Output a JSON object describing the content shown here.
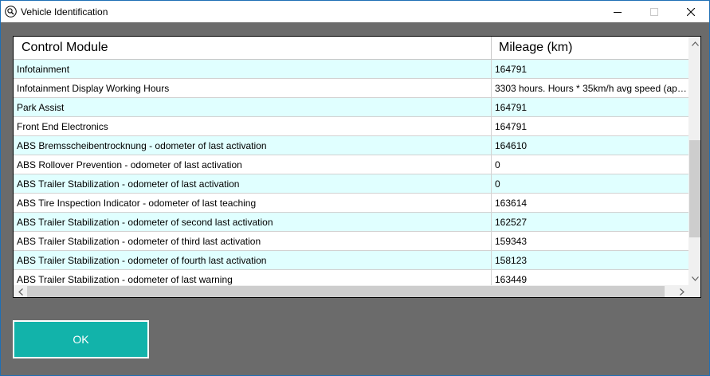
{
  "window": {
    "title": "Vehicle Identification",
    "app_icon": "magnifier-icon",
    "controls": {
      "minimize": "minimize-icon",
      "maximize": "maximize-icon",
      "close": "close-icon"
    }
  },
  "table": {
    "columns": [
      "Control Module",
      "Mileage (km)"
    ],
    "rows": [
      {
        "module": "Infotainment",
        "mileage": "164791"
      },
      {
        "module": "Infotainment Display Working Hours",
        "mileage": "3303 hours. Hours * 35km/h avg speed (app..."
      },
      {
        "module": "Park Assist",
        "mileage": "164791"
      },
      {
        "module": "Front End Electronics",
        "mileage": "164791"
      },
      {
        "module": "ABS Bremsscheibentrocknung - odometer of last activation",
        "mileage": "164610"
      },
      {
        "module": "ABS Rollover Prevention - odometer of last activation",
        "mileage": "0"
      },
      {
        "module": "ABS Trailer Stabilization - odometer of last activation",
        "mileage": "0"
      },
      {
        "module": "ABS Tire Inspection Indicator - odometer of last teaching",
        "mileage": "163614"
      },
      {
        "module": "ABS Trailer Stabilization - odometer of second last activation",
        "mileage": "162527"
      },
      {
        "module": "ABS Trailer Stabilization - odometer of third last activation",
        "mileage": "159343"
      },
      {
        "module": "ABS Trailer Stabilization - odometer of fourth last activation",
        "mileage": "158123"
      },
      {
        "module": "ABS Trailer Stabilization - odometer of last warning",
        "mileage": "163449"
      }
    ]
  },
  "ok_button": {
    "label": "OK"
  },
  "colors": {
    "background": "#6b6b6b",
    "row_alt": "#e0ffff",
    "accent_button": "#12b3aa",
    "window_border": "#1f6fb5"
  }
}
